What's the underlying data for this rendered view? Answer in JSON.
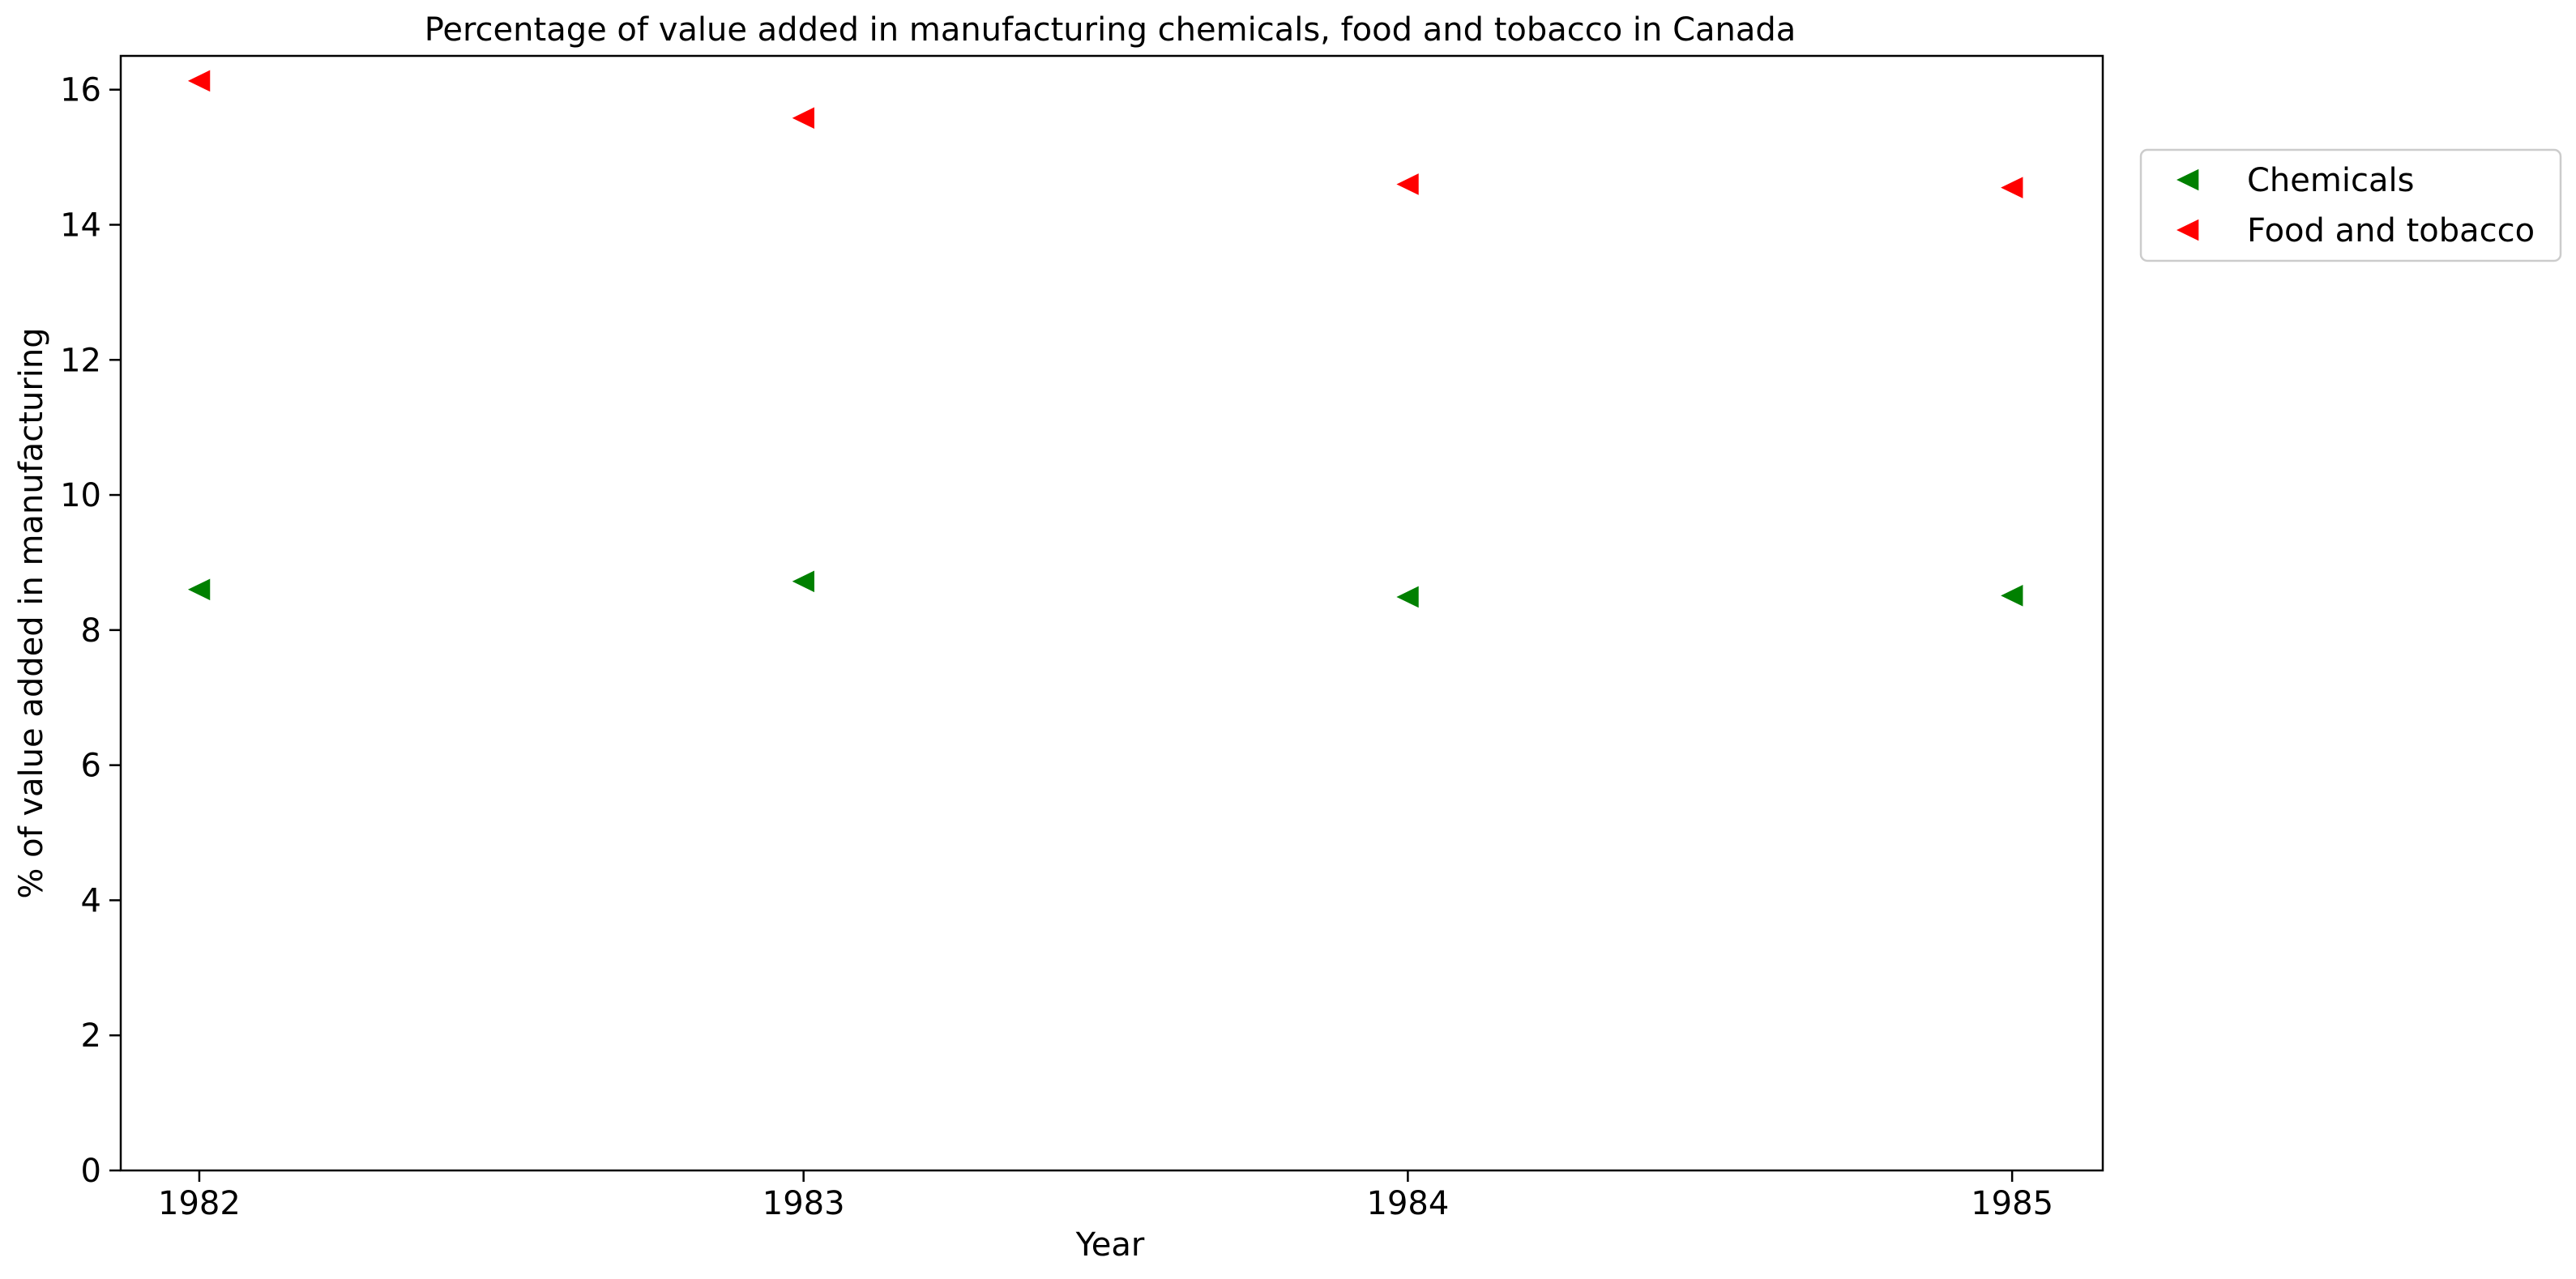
{
  "chart_data": {
    "type": "scatter",
    "title": "Percentage of value added in manufacturing chemicals, food and tobacco in Canada",
    "xlabel": "Year",
    "ylabel": "% of value added in manufacturing",
    "x": [
      "1982",
      "1983",
      "1984",
      "1985"
    ],
    "xlim": [
      1981.87,
      1985.15
    ],
    "ylim": [
      0,
      16.5
    ],
    "yticks": [
      "0",
      "2",
      "4",
      "6",
      "8",
      "10",
      "12",
      "14",
      "16"
    ],
    "grid": false,
    "legend_position": "outside-top-right",
    "marker": "triangle-left",
    "series": [
      {
        "name": "Chemicals",
        "color": "#008000",
        "values": [
          8.6,
          8.72,
          8.49,
          8.51
        ]
      },
      {
        "name": "Food and tobacco",
        "color": "#ff0000",
        "values": [
          16.13,
          15.58,
          14.6,
          14.55
        ]
      }
    ]
  }
}
